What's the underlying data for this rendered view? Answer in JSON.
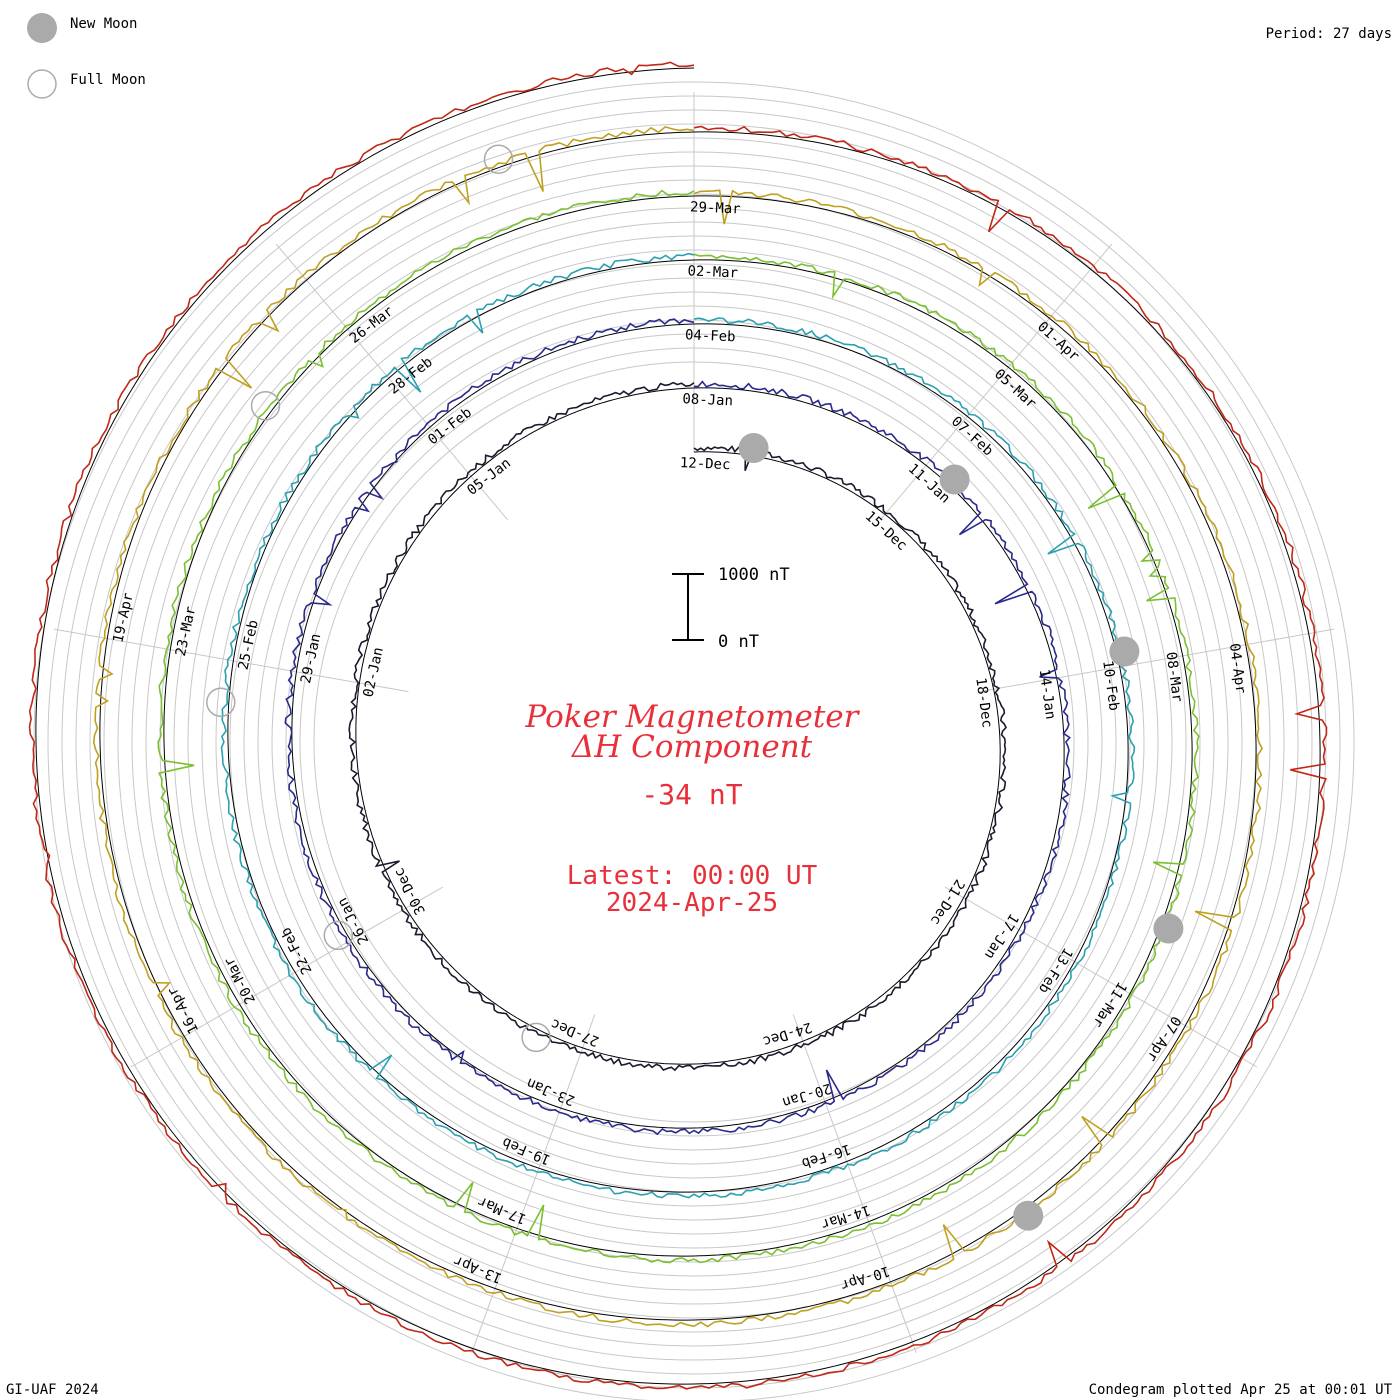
{
  "chart_data": {
    "type": "line",
    "title": "Poker Magnetometer",
    "subtitle": "ΔH Component",
    "current_value": "-34 nT",
    "latest_line1": "Latest: 00:00 UT",
    "latest_line2": "2024-Apr-25",
    "scale_bar": {
      "top_label": "1000 nT",
      "bottom_label": "0 nT",
      "top_value": 1000,
      "bottom_value": 0
    },
    "period_label": "Period: 27 days",
    "credit_label": "GI-UAF 2024",
    "plotted_label": "Condegram plotted Apr 25 at 00:01 UT",
    "legend": [
      {
        "label": "New Moon",
        "type": "new",
        "color": "#aaaaaa"
      },
      {
        "label": "Full Moon",
        "type": "full",
        "color": "#aaaaaa"
      }
    ],
    "moon_markers": [
      {
        "type": "new",
        "date": "11-Dec"
      },
      {
        "type": "full",
        "date": "27-Dec"
      },
      {
        "type": "new",
        "date": "11-Jan"
      },
      {
        "type": "full",
        "date": "25-Jan"
      },
      {
        "type": "new",
        "date": "09-Feb"
      },
      {
        "type": "full",
        "date": "24-Feb"
      },
      {
        "type": "new",
        "date": "10-Mar"
      },
      {
        "type": "full",
        "date": "25-Mar"
      },
      {
        "type": "new",
        "date": "08-Apr"
      },
      {
        "type": "full",
        "date": "23-Apr"
      }
    ],
    "rotations": [
      {
        "color": "#1a1a2e",
        "labels": [
          "12-Dec",
          "15-Dec",
          "18-Dec",
          "21-Dec",
          "24-Dec",
          "27-Dec",
          "30-Dec",
          "02-Jan",
          "05-Jan"
        ]
      },
      {
        "color": "#2a2a8c",
        "labels": [
          "08-Jan",
          "11-Jan",
          "14-Jan",
          "17-Jan",
          "20-Jan",
          "23-Jan",
          "26-Jan",
          "29-Jan",
          "01-Feb"
        ]
      },
      {
        "color": "#2aa0b0",
        "labels": [
          "04-Feb",
          "07-Feb",
          "10-Feb",
          "13-Feb",
          "16-Feb",
          "19-Feb",
          "22-Feb",
          "25-Feb",
          "28-Feb"
        ]
      },
      {
        "color": "#7ac030",
        "labels": [
          "02-Mar",
          "05-Mar",
          "08-Mar",
          "11-Mar",
          "14-Mar",
          "17-Mar",
          "20-Mar",
          "23-Mar",
          "26-Mar"
        ]
      },
      {
        "color": "#c0a020",
        "labels": [
          "29-Mar",
          "01-Apr",
          "04-Apr",
          "07-Apr",
          "10-Apr",
          "13-Apr",
          "16-Apr",
          "19-Apr"
        ]
      },
      {
        "color": "#c02818",
        "labels": []
      }
    ]
  }
}
